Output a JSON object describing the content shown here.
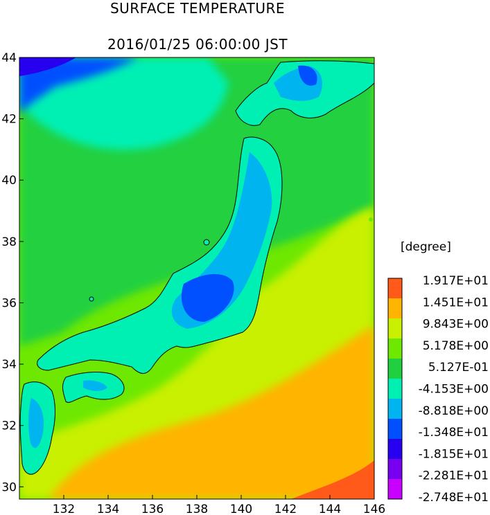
{
  "title": "SURFACE TEMPERATURE",
  "subtitle": "2016/01/25 06:00:00 JST",
  "map": {
    "lon_range": [
      130,
      146
    ],
    "lat_range": [
      29.6,
      44
    ],
    "x_ticks": [
      "132",
      "134",
      "136",
      "138",
      "140",
      "142",
      "144",
      "146"
    ],
    "y_ticks": [
      "44",
      "42",
      "40",
      "38",
      "36",
      "34",
      "32",
      "30"
    ]
  },
  "legend": {
    "unit": "[degree]",
    "labels": [
      "1.917E+01",
      "1.451E+01",
      "9.843E+00",
      "5.178E+00",
      "5.127E-01",
      "-4.153E+00",
      "-8.818E+00",
      "-1.348E+01",
      "-1.815E+01",
      "-2.281E+01",
      "-2.748E+01"
    ],
    "colors": [
      "#ff5a1a",
      "#ffb400",
      "#c8f000",
      "#6ee800",
      "#20d040",
      "#00f0b4",
      "#00b4f0",
      "#0050ff",
      "#2800f0",
      "#7800f0",
      "#c800ff"
    ]
  },
  "colors": {
    "sea_warm": "#ffb400",
    "sea_mild": "#c8f000",
    "sea_cool": "#6ee800",
    "sea_cold": "#00f0b4",
    "land_cold": "#00b4f0",
    "land_freezing": "#0050ff",
    "coast": "#000000"
  }
}
